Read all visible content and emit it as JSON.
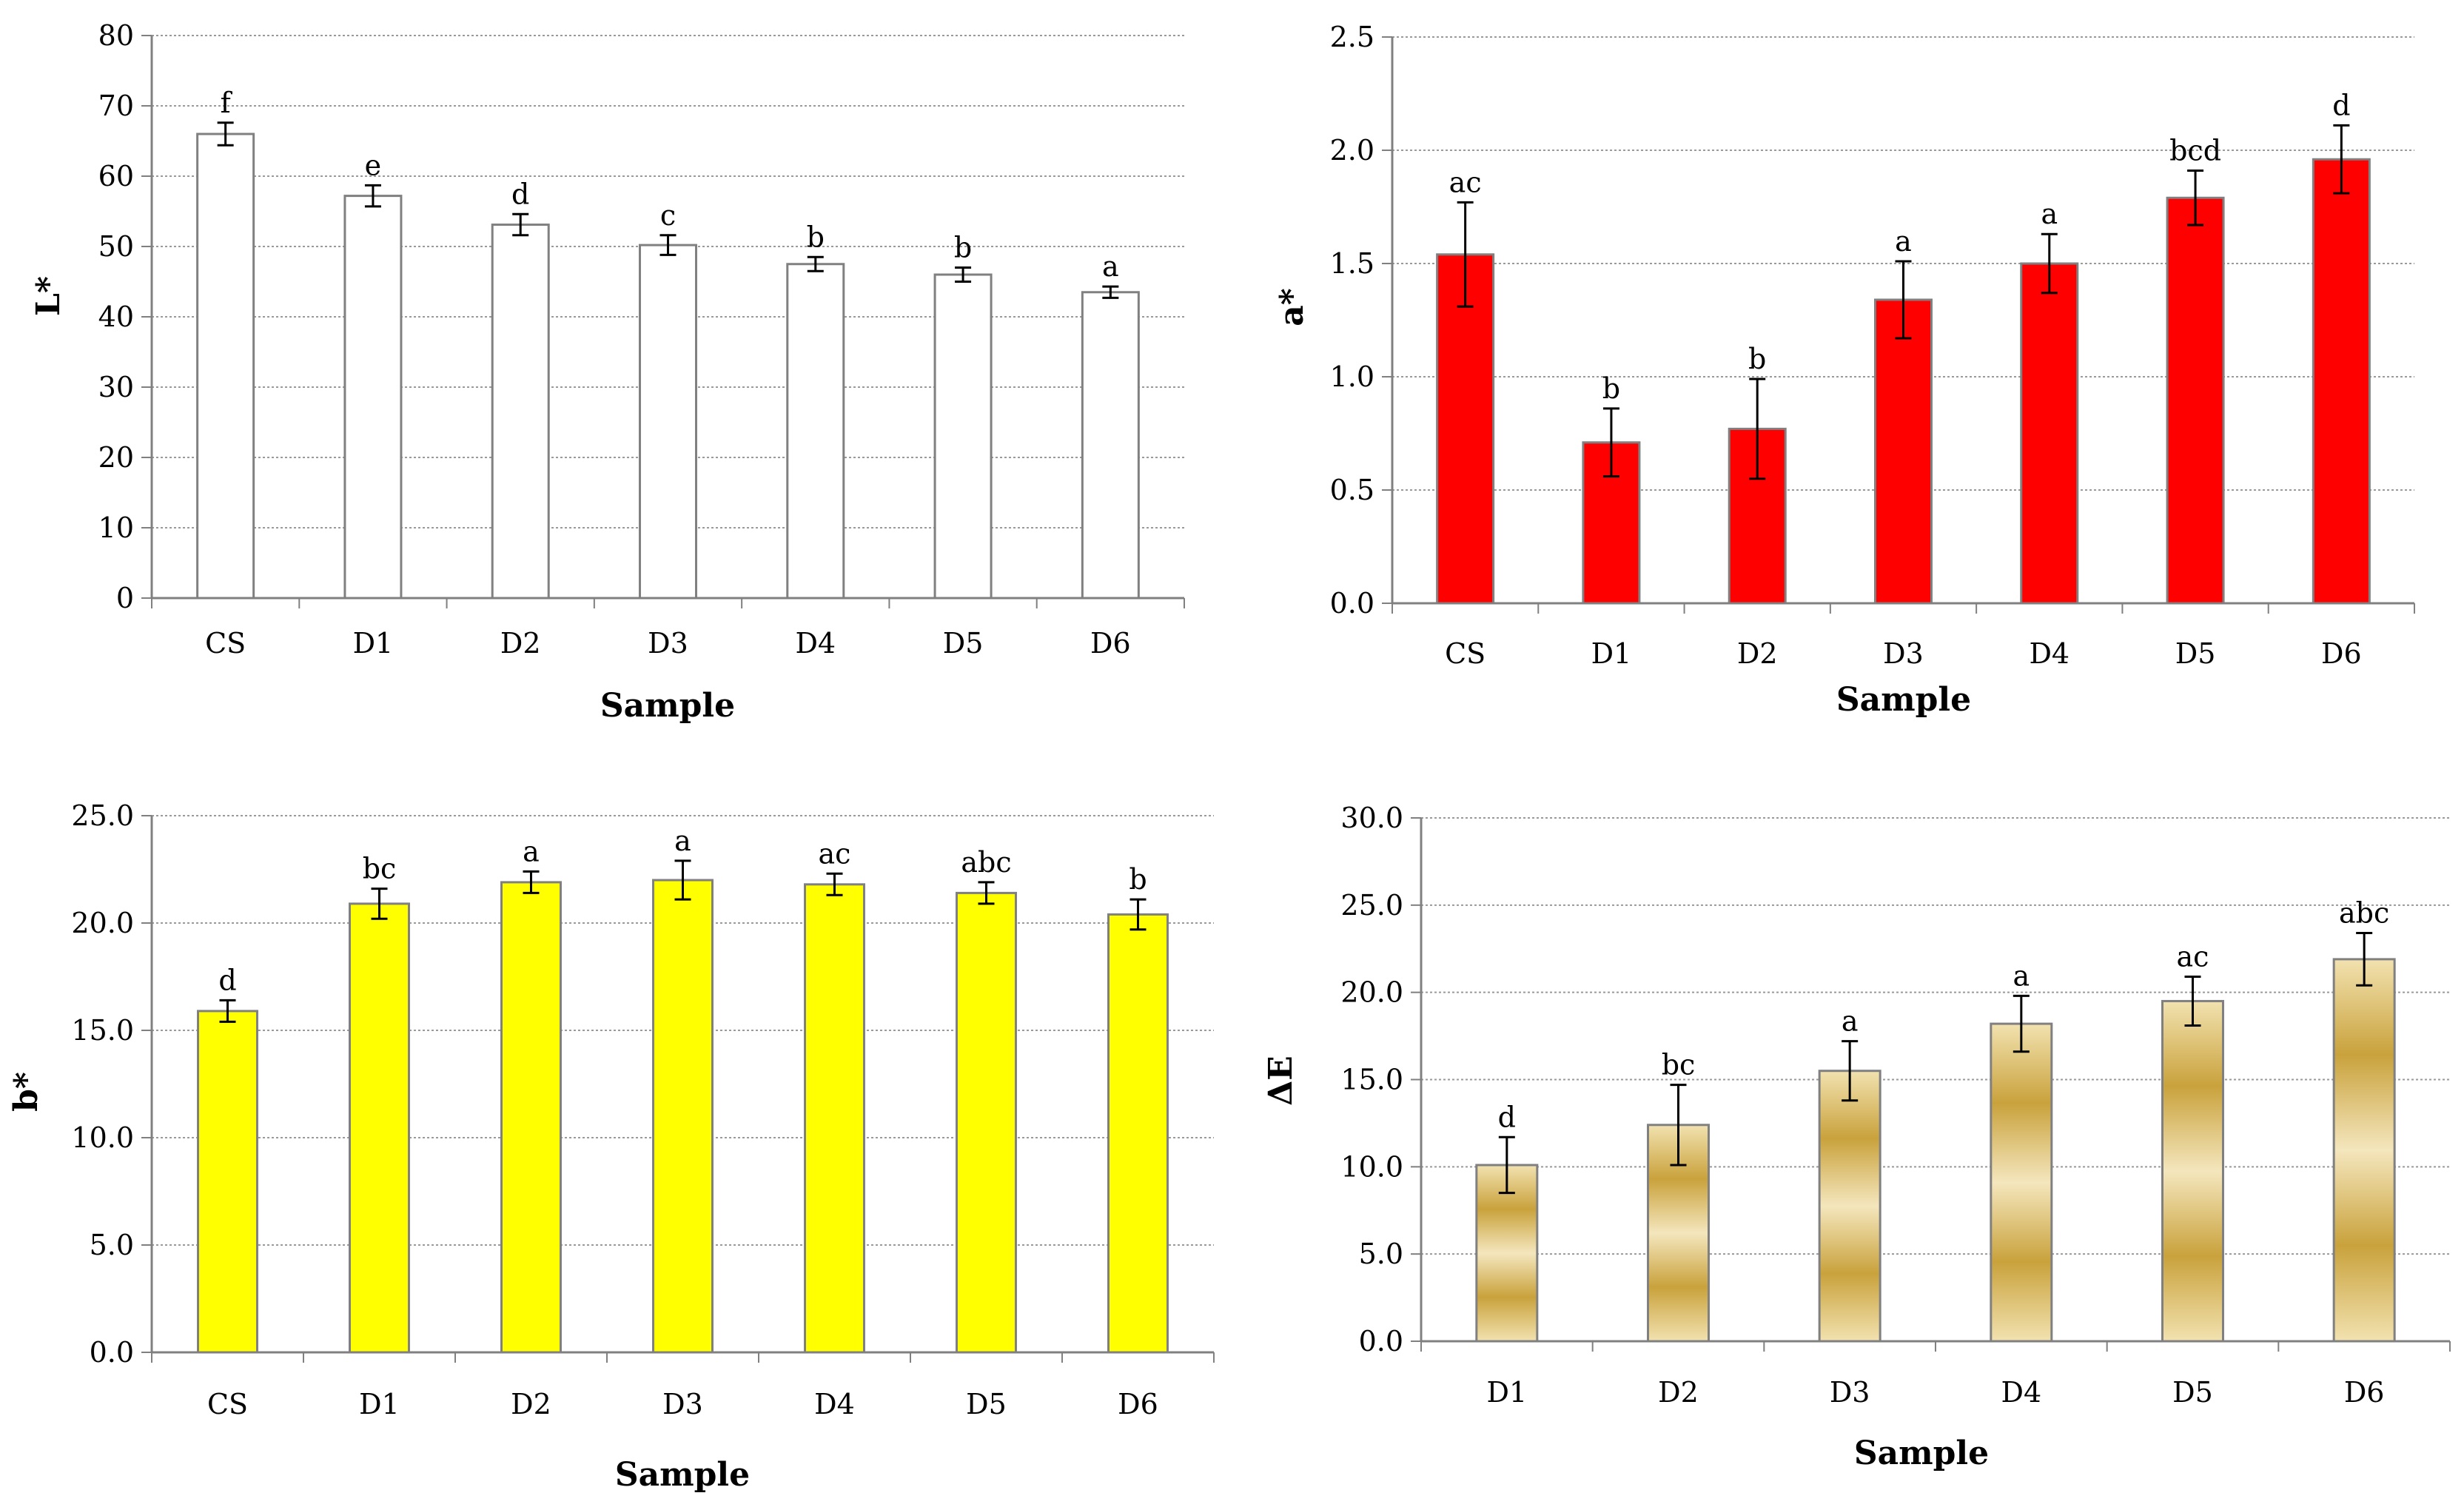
{
  "chart_data": [
    {
      "id": "L",
      "type": "bar",
      "title": "",
      "xlabel": "Sample",
      "ylabel": "L*",
      "categories": [
        "CS",
        "D1",
        "D2",
        "D3",
        "D4",
        "D5",
        "D6"
      ],
      "values": [
        66.0,
        57.2,
        53.1,
        50.2,
        47.5,
        46.0,
        43.5
      ],
      "errors": [
        1.6,
        1.5,
        1.5,
        1.4,
        1.0,
        1.0,
        0.8
      ],
      "significance": [
        "f",
        "e",
        "d",
        "c",
        "b",
        "b",
        "a"
      ],
      "ylim": [
        0,
        80
      ],
      "yticks": [
        0,
        10,
        20,
        30,
        40,
        50,
        60,
        70,
        80
      ],
      "ytick_labels": [
        "0",
        "10",
        "20",
        "30",
        "40",
        "50",
        "60",
        "70",
        "80"
      ],
      "bar_fill": "#ffffff",
      "bar_stroke": "#808080",
      "grid": true
    },
    {
      "id": "a",
      "type": "bar",
      "title": "",
      "xlabel": "Sample",
      "ylabel": "a*",
      "categories": [
        "CS",
        "D1",
        "D2",
        "D3",
        "D4",
        "D5",
        "D6"
      ],
      "values": [
        1.54,
        0.71,
        0.77,
        1.34,
        1.5,
        1.79,
        1.96
      ],
      "errors": [
        0.23,
        0.15,
        0.22,
        0.17,
        0.13,
        0.12,
        0.15
      ],
      "significance": [
        "ac",
        "b",
        "b",
        "a",
        "a",
        "bcd",
        "d"
      ],
      "ylim": [
        0,
        2.5
      ],
      "yticks": [
        0,
        0.5,
        1.0,
        1.5,
        2.0,
        2.5
      ],
      "ytick_labels": [
        "0.0",
        "0.5",
        "1.0",
        "1.5",
        "2.0",
        "2.5"
      ],
      "bar_fill": "#ff0000",
      "bar_stroke": "#808080",
      "grid": true
    },
    {
      "id": "b",
      "type": "bar",
      "title": "",
      "xlabel": "Sample",
      "ylabel": "b*",
      "categories": [
        "CS",
        "D1",
        "D2",
        "D3",
        "D4",
        "D5",
        "D6"
      ],
      "values": [
        15.9,
        20.9,
        21.9,
        22.0,
        21.8,
        21.4,
        20.4
      ],
      "errors": [
        0.5,
        0.7,
        0.5,
        0.9,
        0.5,
        0.5,
        0.7
      ],
      "significance": [
        "d",
        "bc",
        "a",
        "a",
        "ac",
        "abc",
        "b"
      ],
      "ylim": [
        0,
        25
      ],
      "yticks": [
        0,
        5,
        10,
        15,
        20,
        25
      ],
      "ytick_labels": [
        "0.0",
        "5.0",
        "10.0",
        "15.0",
        "20.0",
        "25.0"
      ],
      "bar_fill": "#ffff00",
      "bar_stroke": "#808080",
      "grid": true
    },
    {
      "id": "dE",
      "type": "bar",
      "title": "",
      "xlabel": "Sample",
      "ylabel": "ΔE",
      "categories": [
        "D1",
        "D2",
        "D3",
        "D4",
        "D5",
        "D6"
      ],
      "values": [
        10.1,
        12.4,
        15.5,
        18.2,
        19.5,
        21.9
      ],
      "errors": [
        1.6,
        2.3,
        1.7,
        1.6,
        1.4,
        1.5
      ],
      "significance": [
        "d",
        "bc",
        "a",
        "a",
        "ac",
        "abc"
      ],
      "ylim": [
        0,
        30
      ],
      "yticks": [
        0,
        5,
        10,
        15,
        20,
        25,
        30
      ],
      "ytick_labels": [
        "0.0",
        "5.0",
        "10.0",
        "15.0",
        "20.0",
        "25.0",
        "30.0"
      ],
      "bar_fill": "gold-gradient",
      "bar_stroke": "#808080",
      "grid": true
    }
  ]
}
